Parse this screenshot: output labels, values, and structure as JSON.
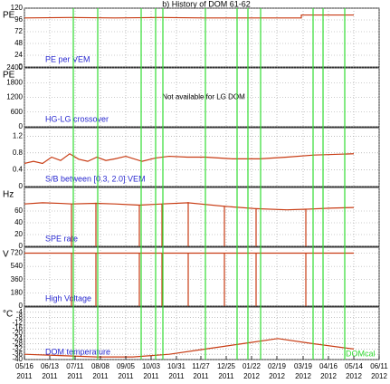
{
  "chart_data": {
    "type": "line",
    "title": "b) History of DOM 61-62",
    "xlim": [
      0,
      392
    ],
    "xticks": [
      {
        "value": 0,
        "label": "05/16"
      },
      {
        "value": 28,
        "label": "06/13"
      },
      {
        "value": 56,
        "label": "07/11"
      },
      {
        "value": 84,
        "label": "08/08"
      },
      {
        "value": 112,
        "label": "09/05"
      },
      {
        "value": 140,
        "label": "10/03"
      },
      {
        "value": 168,
        "label": "10/31"
      },
      {
        "value": 195,
        "label": "11/27"
      },
      {
        "value": 223,
        "label": "12/25"
      },
      {
        "value": 251,
        "label": "01/22"
      },
      {
        "value": 279,
        "label": "02/19"
      },
      {
        "value": 308,
        "label": "03/19"
      },
      {
        "value": 336,
        "label": "04/16"
      },
      {
        "value": 364,
        "label": "05/14"
      },
      {
        "value": 392,
        "label": "06/11"
      }
    ],
    "xtick_years": [
      "2011",
      "2011",
      "2011",
      "2011",
      "2011",
      "2011",
      "2011",
      "2011",
      "2011",
      "2012",
      "2012",
      "2012",
      "2012",
      "2012",
      "2012"
    ],
    "calibration_x": [
      54,
      81,
      129,
      145,
      153,
      200,
      235,
      247,
      261,
      319,
      330,
      354
    ],
    "calibration_color": "#33dd33",
    "calibration_label": "DOMcal",
    "grid": true,
    "panels": [
      {
        "ylabel": "PE",
        "annotation": "PE per VEM",
        "ylim": [
          0,
          120
        ],
        "yticks": [
          0,
          24,
          48,
          72,
          96,
          120
        ],
        "series": [
          {
            "color": "#c83c14",
            "x": [
              0,
              50,
              100,
              150,
              200,
              250,
              306,
              306,
              364
            ],
            "values": [
              100,
              101,
              100,
              101,
              100,
              100,
              100,
              106,
              106
            ]
          }
        ]
      },
      {
        "ylabel": "PE",
        "annotation": "HG-LG crossover",
        "note": "Not available for LG DOM",
        "ylim": [
          0,
          2400
        ],
        "yticks": [
          0,
          600,
          1200,
          1800,
          2400
        ],
        "series": []
      },
      {
        "ylabel": "",
        "annotation": "S/B between [0.3, 2.0] VEM",
        "ylim": [
          0,
          1.4
        ],
        "yticks": [
          0,
          0.4,
          0.8,
          1.2
        ],
        "series": [
          {
            "color": "#c83c14",
            "x": [
              0,
              10,
              20,
              30,
              40,
              50,
              60,
              70,
              80,
              90,
              100,
              112,
              130,
              145,
              160,
              180,
              200,
              230,
              260,
              290,
              320,
              364
            ],
            "values": [
              0.55,
              0.6,
              0.55,
              0.7,
              0.62,
              0.78,
              0.65,
              0.6,
              0.7,
              0.62,
              0.66,
              0.72,
              0.6,
              0.68,
              0.72,
              0.7,
              0.7,
              0.66,
              0.66,
              0.7,
              0.75,
              0.78
            ]
          }
        ]
      },
      {
        "ylabel": "Hz",
        "annotation": "SPE rate",
        "ylim": [
          0,
          100
        ],
        "yticks": [
          0,
          20,
          40,
          60
        ],
        "series": [
          {
            "color": "#c83c14",
            "x": [
              0,
              20,
              40,
              52,
              52,
              52,
              79,
              79,
              79,
              100,
              127,
              127,
              127,
              152,
              152,
              152,
              181,
              181,
              181,
              221,
              221,
              221,
              256,
              256,
              256,
              290,
              311,
              311,
              311,
              340,
              364
            ],
            "values": [
              72,
              74,
              73,
              72,
              0,
              72,
              73,
              0,
              73,
              72,
              70,
              0,
              70,
              72,
              0,
              72,
              74,
              0,
              74,
              68,
              0,
              68,
              64,
              0,
              64,
              62,
              63,
              0,
              63,
              65,
              66
            ]
          }
        ]
      },
      {
        "ylabel": "V",
        "annotation": "High Voltage",
        "ylim": [
          0,
          800
        ],
        "yticks": [
          0,
          180,
          360,
          540,
          720
        ],
        "series": [
          {
            "color": "#c83c14",
            "x": [
              0,
              52,
              52,
              52,
              79,
              79,
              79,
              127,
              127,
              127,
              152,
              152,
              152,
              181,
              181,
              181,
              221,
              221,
              221,
              256,
              256,
              256,
              311,
              311,
              311,
              364
            ],
            "values": [
              720,
              720,
              0,
              720,
              720,
              0,
              720,
              720,
              0,
              720,
              720,
              0,
              720,
              720,
              0,
              720,
              720,
              0,
              720,
              720,
              0,
              720,
              720,
              0,
              720,
              720
            ]
          }
        ]
      },
      {
        "ylabel": "°C",
        "annotation": "DOM temperature",
        "ylim": [
          -40,
          0
        ],
        "yticks": [
          -40,
          -36,
          -32,
          -28,
          -24,
          -20,
          -16,
          -12,
          -8,
          -4
        ],
        "series": [
          {
            "color": "#c83c14",
            "x": [
              0,
              40,
              80,
              120,
              160,
              200,
              240,
              280,
              320,
              364
            ],
            "values": [
              -36,
              -37,
              -38,
              -38,
              -36,
              -32,
              -28,
              -24,
              -28,
              -32
            ]
          }
        ]
      }
    ]
  }
}
